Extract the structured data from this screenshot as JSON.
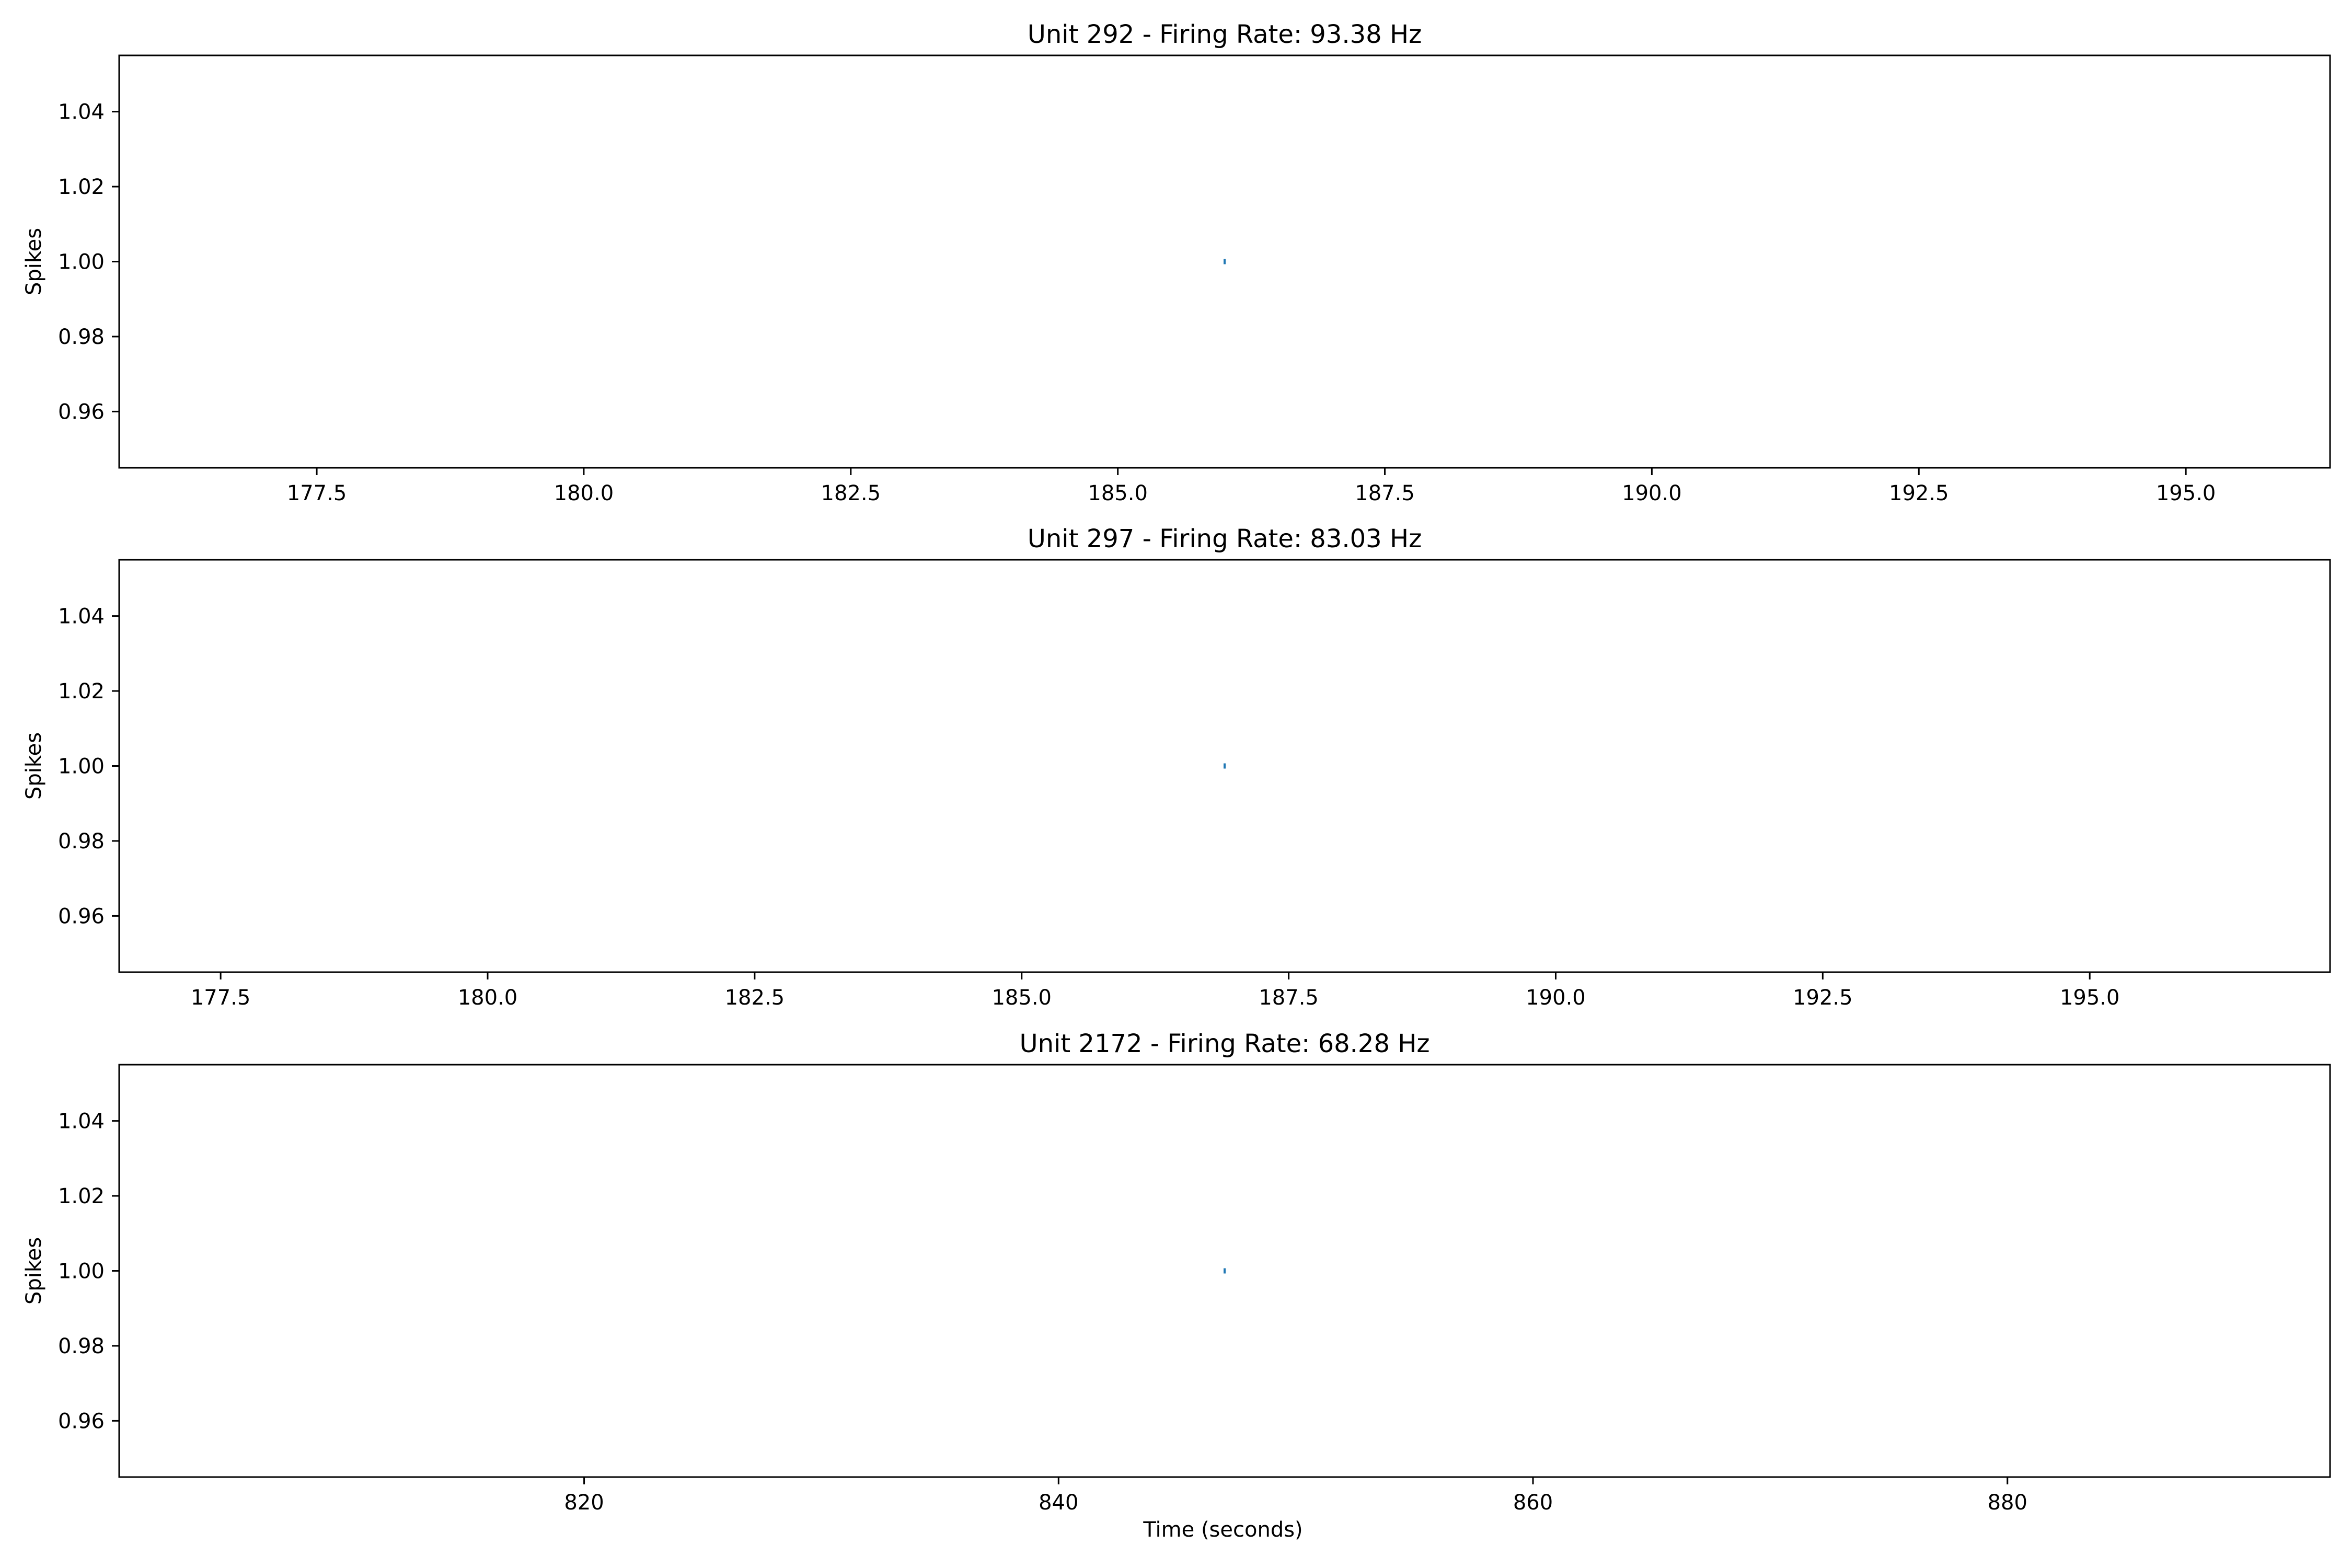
{
  "figure": {
    "background": "#ffffff",
    "spike_color": "#1f77b4",
    "xlabel": "Time (seconds)"
  },
  "chart_data": [
    {
      "type": "scatter",
      "title": "Unit 292 - Firing Rate: 93.38 Hz",
      "xlabel": "",
      "ylabel": "Spikes",
      "xlim": [
        175.65,
        196.35
      ],
      "ylim": [
        0.945,
        1.055
      ],
      "xticks": [
        177.5,
        180.0,
        182.5,
        185.0,
        187.5,
        190.0,
        192.5,
        195.0
      ],
      "xtick_labels": [
        "177.5",
        "180.0",
        "182.5",
        "185.0",
        "187.5",
        "190.0",
        "192.5",
        "195.0"
      ],
      "yticks": [
        1.04,
        1.02,
        1.0,
        0.98,
        0.96
      ],
      "ytick_labels": [
        "1.04",
        "1.02",
        "1.00",
        "0.98",
        "0.96"
      ],
      "grid": false,
      "points": [
        {
          "x": 186.0,
          "y": 1.0
        }
      ]
    },
    {
      "type": "scatter",
      "title": "Unit 297 - Firing Rate: 83.03 Hz",
      "xlabel": "",
      "ylabel": "Spikes",
      "xlim": [
        176.55,
        197.25
      ],
      "ylim": [
        0.945,
        1.055
      ],
      "xticks": [
        177.5,
        180.0,
        182.5,
        185.0,
        187.5,
        190.0,
        192.5,
        195.0
      ],
      "xtick_labels": [
        "177.5",
        "180.0",
        "182.5",
        "185.0",
        "187.5",
        "190.0",
        "192.5",
        "195.0"
      ],
      "yticks": [
        1.04,
        1.02,
        1.0,
        0.98,
        0.96
      ],
      "ytick_labels": [
        "1.04",
        "1.02",
        "1.00",
        "0.98",
        "0.96"
      ],
      "grid": false,
      "points": [
        {
          "x": 186.9,
          "y": 1.0
        }
      ]
    },
    {
      "type": "scatter",
      "title": "Unit 2172 - Firing Rate: 68.28 Hz",
      "xlabel": "Time (seconds)",
      "ylabel": "Spikes",
      "xlim": [
        800.4,
        893.6
      ],
      "ylim": [
        0.945,
        1.055
      ],
      "xticks": [
        820,
        840,
        860,
        880
      ],
      "xtick_labels": [
        "820",
        "840",
        "860",
        "880"
      ],
      "yticks": [
        1.04,
        1.02,
        1.0,
        0.98,
        0.96
      ],
      "ytick_labels": [
        "1.04",
        "1.02",
        "1.00",
        "0.98",
        "0.96"
      ],
      "grid": false,
      "points": [
        {
          "x": 847.0,
          "y": 1.0
        }
      ]
    }
  ]
}
